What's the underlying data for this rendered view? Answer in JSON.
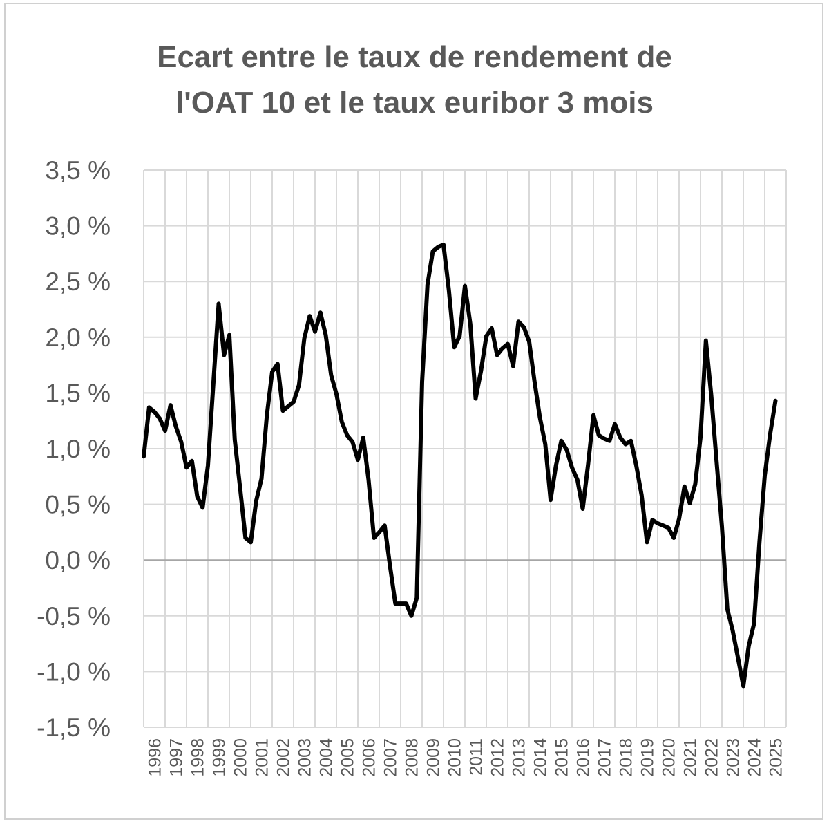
{
  "chart_data": {
    "type": "line",
    "title": "Ecart entre le taux de rendement de\nl'OAT 10 et le taux euribor 3 mois",
    "xlabel": "",
    "ylabel": "",
    "ylim": [
      -1.5,
      3.5
    ],
    "yticks": [
      3.5,
      3.0,
      2.5,
      2.0,
      1.5,
      1.0,
      0.5,
      0.0,
      -0.5,
      -1.0,
      -1.5
    ],
    "ytick_labels": [
      "3,5 %",
      "3,0 %",
      "2,5 %",
      "2,0 %",
      "1,5 %",
      "1,0 %",
      "0,5 %",
      "0,0 %",
      "-0,5 %",
      "-1,0 %",
      "-1,5 %"
    ],
    "x_categories": [
      "1996",
      "1997",
      "1998",
      "1999",
      "2000",
      "2001",
      "2002",
      "2003",
      "2004",
      "2005",
      "2006",
      "2007",
      "2008",
      "2009",
      "2010",
      "2011",
      "2012",
      "2013",
      "2014",
      "2015",
      "2016",
      "2017",
      "2018",
      "2019",
      "2020",
      "2021",
      "2022",
      "2023",
      "2024",
      "2025"
    ],
    "grid": true,
    "legend": "none",
    "line_color": "#000000",
    "series": [
      {
        "x": [
          1996.0,
          1996.25,
          1996.5,
          1996.75,
          1997.0,
          1997.25,
          1997.5,
          1997.75,
          1998.0,
          1998.25,
          1998.5,
          1998.75,
          1999.0,
          1999.25,
          1999.5,
          1999.75,
          2000.0,
          2000.25,
          2000.5,
          2000.75,
          2001.0,
          2001.25,
          2001.5,
          2001.75,
          2002.0,
          2002.25,
          2002.5,
          2002.75,
          2003.0,
          2003.25,
          2003.5,
          2003.75,
          2004.0,
          2004.25,
          2004.5,
          2004.75,
          2005.0,
          2005.25,
          2005.5,
          2005.75,
          2006.0,
          2006.25,
          2006.5,
          2006.75,
          2007.0,
          2007.25,
          2007.5,
          2007.75,
          2008.0,
          2008.25,
          2008.5,
          2008.75,
          2009.0,
          2009.25,
          2009.5,
          2009.75,
          2010.0,
          2010.25,
          2010.5,
          2010.75,
          2011.0,
          2011.25,
          2011.5,
          2011.75,
          2012.0,
          2012.25,
          2012.5,
          2012.75,
          2013.0,
          2013.25,
          2013.5,
          2013.75,
          2014.0,
          2014.25,
          2014.5,
          2014.75,
          2015.0,
          2015.25,
          2015.5,
          2015.75,
          2016.0,
          2016.25,
          2016.5,
          2016.75,
          2017.0,
          2017.25,
          2017.5,
          2017.75,
          2018.0,
          2018.25,
          2018.5,
          2018.75,
          2019.0,
          2019.25,
          2019.5,
          2019.75,
          2020.0,
          2020.25,
          2020.5,
          2020.75,
          2021.0,
          2021.25,
          2021.5,
          2021.75,
          2022.0,
          2022.25,
          2022.5,
          2022.75,
          2023.0,
          2023.25,
          2023.5,
          2023.75,
          2024.0,
          2024.25,
          2024.5,
          2024.75,
          2025.0,
          2025.25,
          2025.5
        ],
        "values": [
          0.93,
          1.37,
          1.33,
          1.27,
          1.16,
          1.39,
          1.2,
          1.06,
          0.83,
          0.89,
          0.57,
          0.47,
          0.85,
          1.58,
          2.3,
          1.84,
          2.02,
          1.08,
          0.65,
          0.2,
          0.16,
          0.53,
          0.73,
          1.3,
          1.69,
          1.76,
          1.34,
          1.38,
          1.42,
          1.57,
          1.99,
          2.19,
          2.05,
          2.22,
          2.02,
          1.66,
          1.49,
          1.24,
          1.12,
          1.06,
          0.9,
          1.1,
          0.72,
          0.2,
          0.25,
          0.31,
          -0.05,
          -0.39,
          -0.39,
          -0.39,
          -0.5,
          -0.34,
          1.6,
          2.47,
          2.77,
          2.81,
          2.83,
          2.42,
          1.91,
          2.01,
          2.46,
          2.12,
          1.45,
          1.7,
          2.01,
          2.08,
          1.84,
          1.9,
          1.94,
          1.74,
          2.14,
          2.09,
          1.96,
          1.6,
          1.28,
          1.04,
          0.54,
          0.85,
          1.07,
          0.99,
          0.83,
          0.72,
          0.46,
          0.86,
          1.3,
          1.12,
          1.09,
          1.07,
          1.22,
          1.1,
          1.04,
          1.07,
          0.85,
          0.58,
          0.16,
          0.36,
          0.33,
          0.31,
          0.29,
          0.2,
          0.37,
          0.66,
          0.51,
          0.68,
          1.1,
          1.97,
          1.48,
          0.88,
          0.3,
          -0.44,
          -0.63,
          -0.88,
          -1.13,
          -0.77,
          -0.57,
          0.16,
          0.76,
          1.13,
          1.43
        ]
      }
    ]
  }
}
